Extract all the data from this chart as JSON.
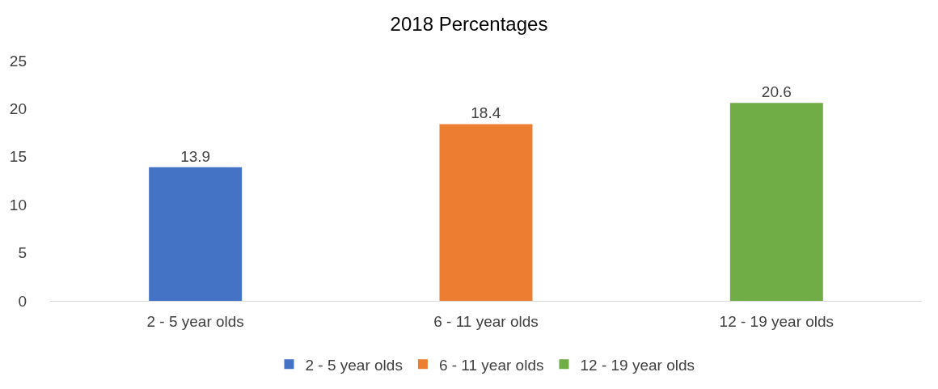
{
  "chart_data": {
    "type": "bar",
    "title": "2018 Percentages",
    "categories": [
      "2 - 5 year olds",
      "6 - 11 year olds",
      "12 - 19 year olds"
    ],
    "series": [
      {
        "name": "2 - 5 year olds",
        "color": "#4472c4",
        "values": [
          13.9,
          null,
          null
        ]
      },
      {
        "name": "6 - 11 year olds",
        "color": "#ed7d31",
        "values": [
          null,
          18.4,
          null
        ]
      },
      {
        "name": "12 - 19 year olds",
        "color": "#70ad47",
        "values": [
          null,
          null,
          20.6
        ]
      }
    ],
    "ylim": [
      0,
      25
    ],
    "yticks": [
      0,
      5,
      10,
      15,
      20,
      25
    ],
    "grid": false,
    "legend": "bottom",
    "data_labels": true
  }
}
